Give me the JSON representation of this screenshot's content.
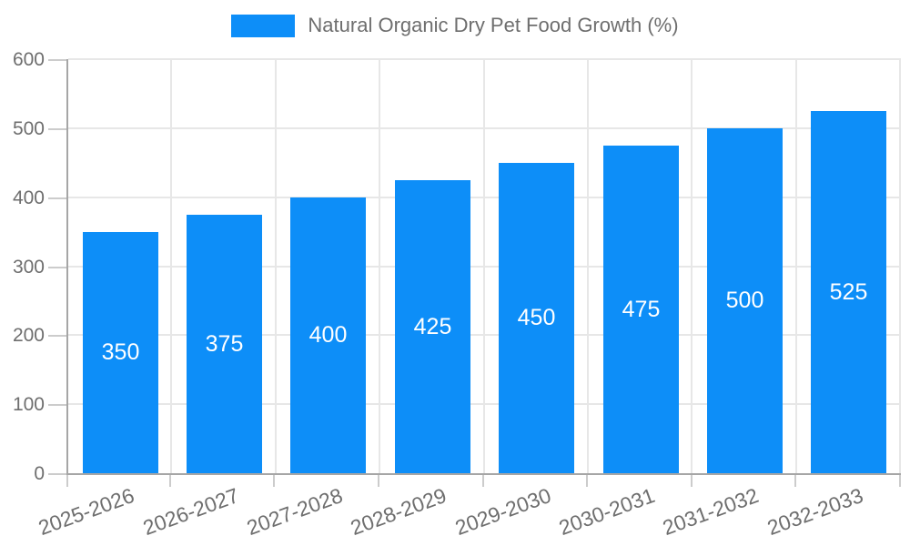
{
  "chart_data": {
    "type": "bar",
    "title": "Natural Organic Dry Pet Food Growth (%)",
    "categories": [
      "2025-2026",
      "2026-2027",
      "2027-2028",
      "2028-2029",
      "2029-2030",
      "2030-2031",
      "2031-2032",
      "2032-2033"
    ],
    "values": [
      350,
      375,
      400,
      425,
      450,
      475,
      500,
      525
    ],
    "xlabel": "",
    "ylabel": "",
    "ylim": [
      0,
      600
    ],
    "yticks": [
      0,
      100,
      200,
      300,
      400,
      500,
      600
    ],
    "grid": true,
    "legend_position": "top",
    "value_labels": "centered-inside-bars"
  },
  "colors": {
    "bar": "#0d8ef8",
    "value_label": "#ffffff",
    "axis_text": "#6e6e6e",
    "legend_text": "#6e6e6e",
    "gridline": "#e7e7e7",
    "axis_line": "#a6a6a6",
    "tick_mark": "#cccccc",
    "background": "#ffffff"
  }
}
